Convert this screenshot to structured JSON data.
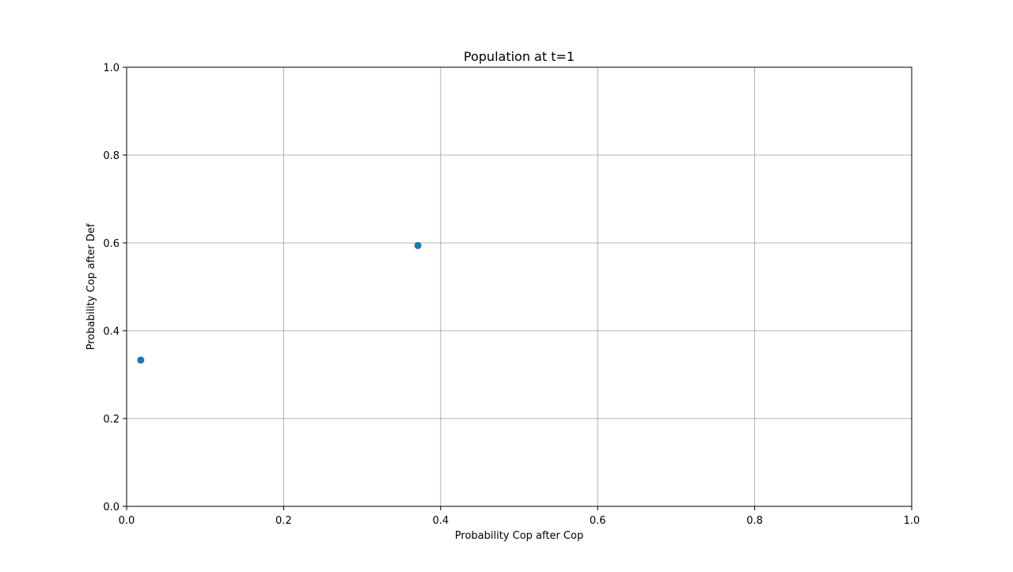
{
  "chart_data": {
    "type": "scatter",
    "title": "Population at t=1",
    "xlabel": "Probability Cop after Cop",
    "ylabel": "Probability Cop after Def",
    "xlim": [
      0,
      1
    ],
    "ylim": [
      0,
      1
    ],
    "xticks": [
      "0.0",
      "0.2",
      "0.4",
      "0.6",
      "0.8",
      "1.0"
    ],
    "yticks": [
      "0.0",
      "0.2",
      "0.4",
      "0.6",
      "0.8",
      "1.0"
    ],
    "grid": true,
    "points": [
      {
        "x": 0.018,
        "y": 0.333
      },
      {
        "x": 0.371,
        "y": 0.594
      }
    ],
    "marker_color": "#1f77b4",
    "grid_color": "#b0b0b0"
  }
}
